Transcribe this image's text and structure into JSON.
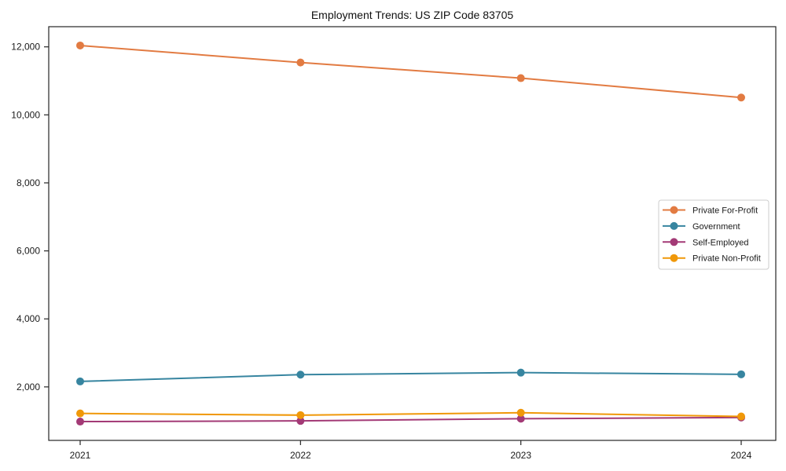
{
  "chart_data": {
    "type": "line",
    "title": "Employment Trends: US ZIP Code 83705",
    "categories": [
      "2021",
      "2022",
      "2023",
      "2024"
    ],
    "series": [
      {
        "name": "Private For-Profit",
        "color": "#E27B42",
        "values": [
          12040,
          11540,
          11080,
          10510
        ]
      },
      {
        "name": "Government",
        "color": "#3785A0",
        "values": [
          2160,
          2360,
          2420,
          2370
        ]
      },
      {
        "name": "Self-Employed",
        "color": "#A33A76",
        "values": [
          980,
          1000,
          1065,
          1100
        ]
      },
      {
        "name": "Private Non-Profit",
        "color": "#F09809",
        "values": [
          1220,
          1170,
          1240,
          1130
        ]
      }
    ],
    "y_ticks": [
      2000,
      4000,
      6000,
      8000,
      10000,
      12000
    ],
    "ylim": [
      427,
      12593
    ],
    "xlabel": "",
    "ylabel": "",
    "grid": false,
    "marker": "circle",
    "legend_position": "center right",
    "axis_color": "#262626",
    "text_color": "#1a1a1a",
    "background_color": "#ffffff",
    "legend_border_color": "#cccccc"
  }
}
